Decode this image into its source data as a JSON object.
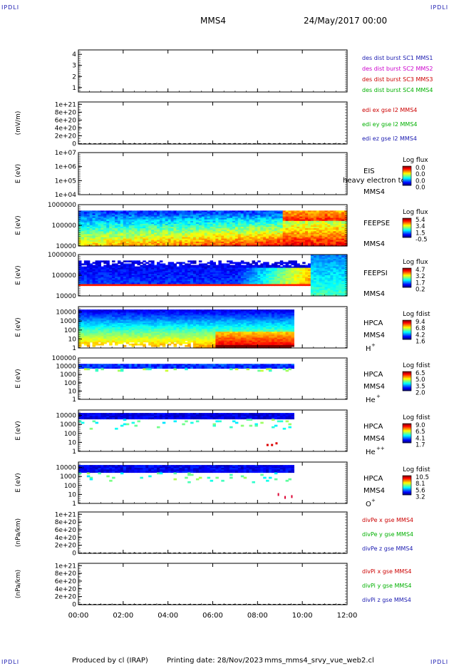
{
  "header": {
    "corner_tl": "IPDLI",
    "corner_tr": "IPDLI",
    "corner_bl": "IPDLI",
    "corner_br": "IPDLI",
    "spacecraft": "MMS4",
    "date": "24/May/2017 00:00"
  },
  "footer": {
    "produced_by": "Produced by cl (IRAP)",
    "printing_date": "Printing date: 28/Nov/2023",
    "file": "mms_mms4_srvy_vue_web2.cl"
  },
  "colors": {
    "axis": "#000000",
    "red": "#cc0000",
    "green": "#00b000",
    "blue": "#1a1ab0",
    "magenta": "#cc00cc"
  },
  "chart_data": {
    "type": "heatmap",
    "x_ticks": [
      "00:00",
      "02:00",
      "04:00",
      "06:00",
      "08:00",
      "10:00",
      "12:00"
    ],
    "x_range_hours": [
      0,
      12
    ],
    "panels": [
      {
        "id": "p1",
        "kind": "line",
        "ytick_labels": [
          "4",
          "3",
          "2",
          "1"
        ],
        "yvals": [
          4,
          3,
          2,
          1
        ],
        "ylim": [
          0.6,
          4.4
        ],
        "ylabel": "",
        "legend": [
          {
            "t": "des dist burst SC1 MMS1",
            "c": "#1a1ab0"
          },
          {
            "t": "des dist burst SC2 MMS2",
            "c": "#cc00cc"
          },
          {
            "t": "des dist burst SC3 MMS3",
            "c": "#cc0000"
          },
          {
            "t": "des dist burst SC4 MMS4",
            "c": "#00b000"
          }
        ]
      },
      {
        "id": "p2",
        "kind": "line",
        "ytick_labels": [
          "1e+21",
          "8e+20",
          "6e+20",
          "4e+20",
          "2e+20",
          "0"
        ],
        "yvals": [
          1e+21,
          8e+20,
          6e+20,
          4e+20,
          2e+20,
          0
        ],
        "ylim": [
          -1e+19,
          1.06e+21
        ],
        "ylabel": "(mV/m)",
        "zero_line": true,
        "legend": [
          {
            "t": "edi ex gse l2 MMS4",
            "c": "#cc0000"
          },
          {
            "t": "edi ey gse l2 MMS4",
            "c": "#00b000"
          },
          {
            "t": "edi ez gse l2 MMS4",
            "c": "#1a1ab0"
          }
        ]
      },
      {
        "id": "p3",
        "kind": "spec",
        "log": true,
        "ytick_labels": [
          "1e+07",
          "1e+06",
          "1e+05",
          "1e+04"
        ],
        "yvals": [
          10000000.0,
          1000000.0,
          100000.0,
          10000.0
        ],
        "ylim": [
          10000.0,
          10000000.0
        ],
        "ylabel": "E (eV)",
        "inst": [
          "EIS",
          "MMS4"
        ],
        "overlay": "heavy electron to",
        "cbar_title": "Log flux",
        "cbar_ticks": [
          "0.0",
          "0.0",
          "0.0",
          "0.0"
        ]
      },
      {
        "id": "p4",
        "kind": "spec",
        "log": true,
        "ytick_labels": [
          "1000000",
          "100000",
          "10000"
        ],
        "yvals": [
          1000000.0,
          100000.0,
          10000.0
        ],
        "ylim": [
          10000.0,
          1000000.0
        ],
        "ylabel": "E (eV)",
        "inst": [
          "FEEPSE",
          "MMS4"
        ],
        "cbar_title": "Log flux",
        "cbar_ticks": [
          "5.4",
          "3.4",
          "1.5",
          "-0.5"
        ]
      },
      {
        "id": "p5",
        "kind": "spec",
        "log": true,
        "ytick_labels": [
          "1000000",
          "100000",
          "10000"
        ],
        "yvals": [
          1000000.0,
          100000.0,
          10000.0
        ],
        "ylim": [
          10000.0,
          1000000.0
        ],
        "ylabel": "E (eV)",
        "inst": [
          "FEEPSI",
          "MMS4"
        ],
        "cbar_title": "Log flux",
        "cbar_ticks": [
          "4.7",
          "3.2",
          "1.7",
          "0.2"
        ]
      },
      {
        "id": "p6",
        "kind": "spec",
        "log": true,
        "ytick_labels": [
          "10000",
          "1000",
          "100",
          "10",
          "1"
        ],
        "yvals": [
          10000.0,
          1000.0,
          100.0,
          10,
          1
        ],
        "ylim": [
          1,
          40000.0
        ],
        "ylabel": "E (eV)",
        "inst": [
          "HPCA",
          "MMS4"
        ],
        "species": "H",
        "species_sup": "+",
        "cbar_title": "Log fdist",
        "cbar_ticks": [
          "9.4",
          "6.8",
          "4.2",
          "1.6"
        ]
      },
      {
        "id": "p7",
        "kind": "spec",
        "log": true,
        "ytick_labels": [
          "100000",
          "10000",
          "1000",
          "100",
          "10",
          "1"
        ],
        "yvals": [
          100000.0,
          10000.0,
          1000.0,
          100.0,
          10,
          1
        ],
        "ylim": [
          1,
          100000.0
        ],
        "ylabel": "E (eV)",
        "inst": [
          "HPCA",
          "MMS4"
        ],
        "species": "He",
        "species_sup": "+",
        "cbar_title": "Log fdist",
        "cbar_ticks": [
          "6.5",
          "5.0",
          "3.5",
          "2.0"
        ]
      },
      {
        "id": "p8",
        "kind": "spec",
        "log": true,
        "ytick_labels": [
          "10000",
          "1000",
          "100",
          "10",
          "1"
        ],
        "yvals": [
          10000.0,
          1000.0,
          100.0,
          10,
          1
        ],
        "ylim": [
          1,
          40000.0
        ],
        "ylabel": "E (eV)",
        "inst": [
          "HPCA",
          "MMS4"
        ],
        "species": "He",
        "species_sup": "++",
        "cbar_title": "Log fdist",
        "cbar_ticks": [
          "9.0",
          "6.5",
          "4.1",
          "1.7"
        ]
      },
      {
        "id": "p9",
        "kind": "spec",
        "log": true,
        "ytick_labels": [
          "10000",
          "1000",
          "100",
          "10",
          "1"
        ],
        "yvals": [
          10000.0,
          1000.0,
          100.0,
          10,
          1
        ],
        "ylim": [
          1,
          40000.0
        ],
        "ylabel": "E (eV)",
        "inst": [
          "HPCA",
          "MMS4"
        ],
        "species": "O",
        "species_sup": "+",
        "cbar_title": "Log fdist",
        "cbar_ticks": [
          "10.5",
          "8.1",
          "5.6",
          "3.2"
        ]
      },
      {
        "id": "p10",
        "kind": "line",
        "ytick_labels": [
          "1e+21",
          "8e+20",
          "6e+20",
          "4e+20",
          "2e+20",
          "0"
        ],
        "yvals": [
          1e+21,
          8e+20,
          6e+20,
          4e+20,
          2e+20,
          0
        ],
        "ylim": [
          -1e+19,
          1.06e+21
        ],
        "ylabel": "(nPa/km)",
        "zero_line": true,
        "legend": [
          {
            "t": "divPe x gse MMS4",
            "c": "#cc0000"
          },
          {
            "t": "divPe y gse MMS4",
            "c": "#00b000"
          },
          {
            "t": "divPe z gse MMS4",
            "c": "#1a1ab0"
          }
        ]
      },
      {
        "id": "p11",
        "kind": "line",
        "ytick_labels": [
          "1e+21",
          "8e+20",
          "6e+20",
          "4e+20",
          "2e+20",
          "0"
        ],
        "yvals": [
          1e+21,
          8e+20,
          6e+20,
          4e+20,
          2e+20,
          0
        ],
        "ylim": [
          -1e+19,
          1.06e+21
        ],
        "ylabel": "(nPa/km)",
        "zero_line": true,
        "legend": [
          {
            "t": "divPi x gse MMS4",
            "c": "#cc0000"
          },
          {
            "t": "divPi y gse MMS4",
            "c": "#00b000"
          },
          {
            "t": "divPi z gse MMS4",
            "c": "#1a1ab0"
          }
        ]
      }
    ]
  }
}
